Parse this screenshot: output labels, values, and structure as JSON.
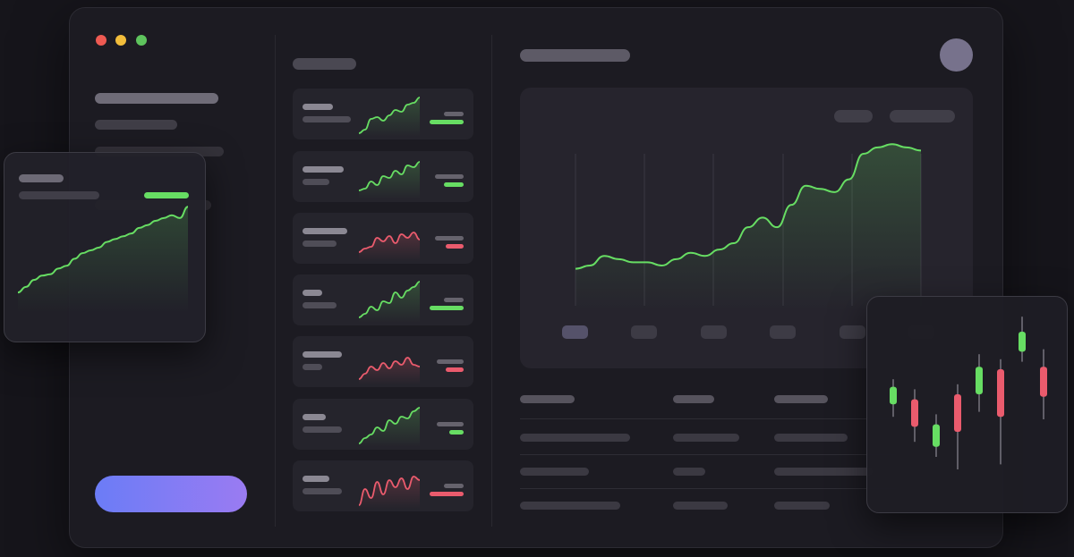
{
  "window_controls": {
    "close_color": "#ee5a52",
    "minimize_color": "#f2bd3b",
    "maximize_color": "#5ec45d"
  },
  "colors": {
    "positive": "#67dd63",
    "negative": "#ea5b6d",
    "button_gradient": [
      "#6b7cf6",
      "#9a7bf2"
    ]
  },
  "watchlist": [
    {
      "trend": "up"
    },
    {
      "trend": "up"
    },
    {
      "trend": "down"
    },
    {
      "trend": "up"
    },
    {
      "trend": "down"
    },
    {
      "trend": "up"
    },
    {
      "trend": "down"
    }
  ],
  "chart_data": [
    {
      "type": "area",
      "name_visible": false,
      "x": [
        0,
        1,
        2,
        3,
        4,
        5,
        6,
        7,
        8,
        9,
        10,
        11,
        12,
        13,
        14,
        15,
        16,
        17,
        18,
        19,
        20,
        21,
        22,
        23,
        24
      ],
      "series": [
        {
          "values": [
            20,
            21,
            24,
            23,
            22,
            22,
            21,
            23,
            25,
            24,
            26,
            28,
            33,
            36,
            33,
            40,
            46,
            45,
            44,
            48,
            56,
            58,
            59,
            58,
            57
          ]
        }
      ],
      "grid": "vertical",
      "legend": "none"
    },
    {
      "type": "area",
      "name_visible": false,
      "x": [
        0,
        1,
        2,
        3,
        4,
        5,
        6,
        7,
        8,
        9,
        10,
        11,
        12,
        13,
        14,
        15,
        16,
        17,
        18,
        19,
        20,
        21
      ],
      "series": [
        {
          "values": [
            5,
            9,
            14,
            17,
            18,
            22,
            24,
            29,
            33,
            35,
            37,
            41,
            43,
            45,
            47,
            51,
            53,
            56,
            58,
            60,
            58,
            66
          ]
        }
      ],
      "legend": "none"
    },
    {
      "type": "candlestick",
      "candles": [
        {
          "open": 7.2,
          "close": 8.6,
          "high": 9.2,
          "low": 6.2,
          "direction": "up"
        },
        {
          "open": 7.6,
          "close": 5.4,
          "high": 8.4,
          "low": 4.2,
          "direction": "down"
        },
        {
          "open": 3.8,
          "close": 5.6,
          "high": 6.4,
          "low": 3.0,
          "direction": "up"
        },
        {
          "open": 8.0,
          "close": 5.0,
          "high": 8.8,
          "low": 2.0,
          "direction": "down"
        },
        {
          "open": 8.0,
          "close": 10.2,
          "high": 11.2,
          "low": 6.6,
          "direction": "up"
        },
        {
          "open": 10.0,
          "close": 6.2,
          "high": 10.8,
          "low": 2.4,
          "direction": "down"
        },
        {
          "open": 11.4,
          "close": 13.0,
          "high": 14.2,
          "low": 10.6,
          "direction": "up"
        },
        {
          "open": 10.2,
          "close": 7.8,
          "high": 11.6,
          "low": 6.0,
          "direction": "down"
        }
      ],
      "legend": "none"
    }
  ]
}
